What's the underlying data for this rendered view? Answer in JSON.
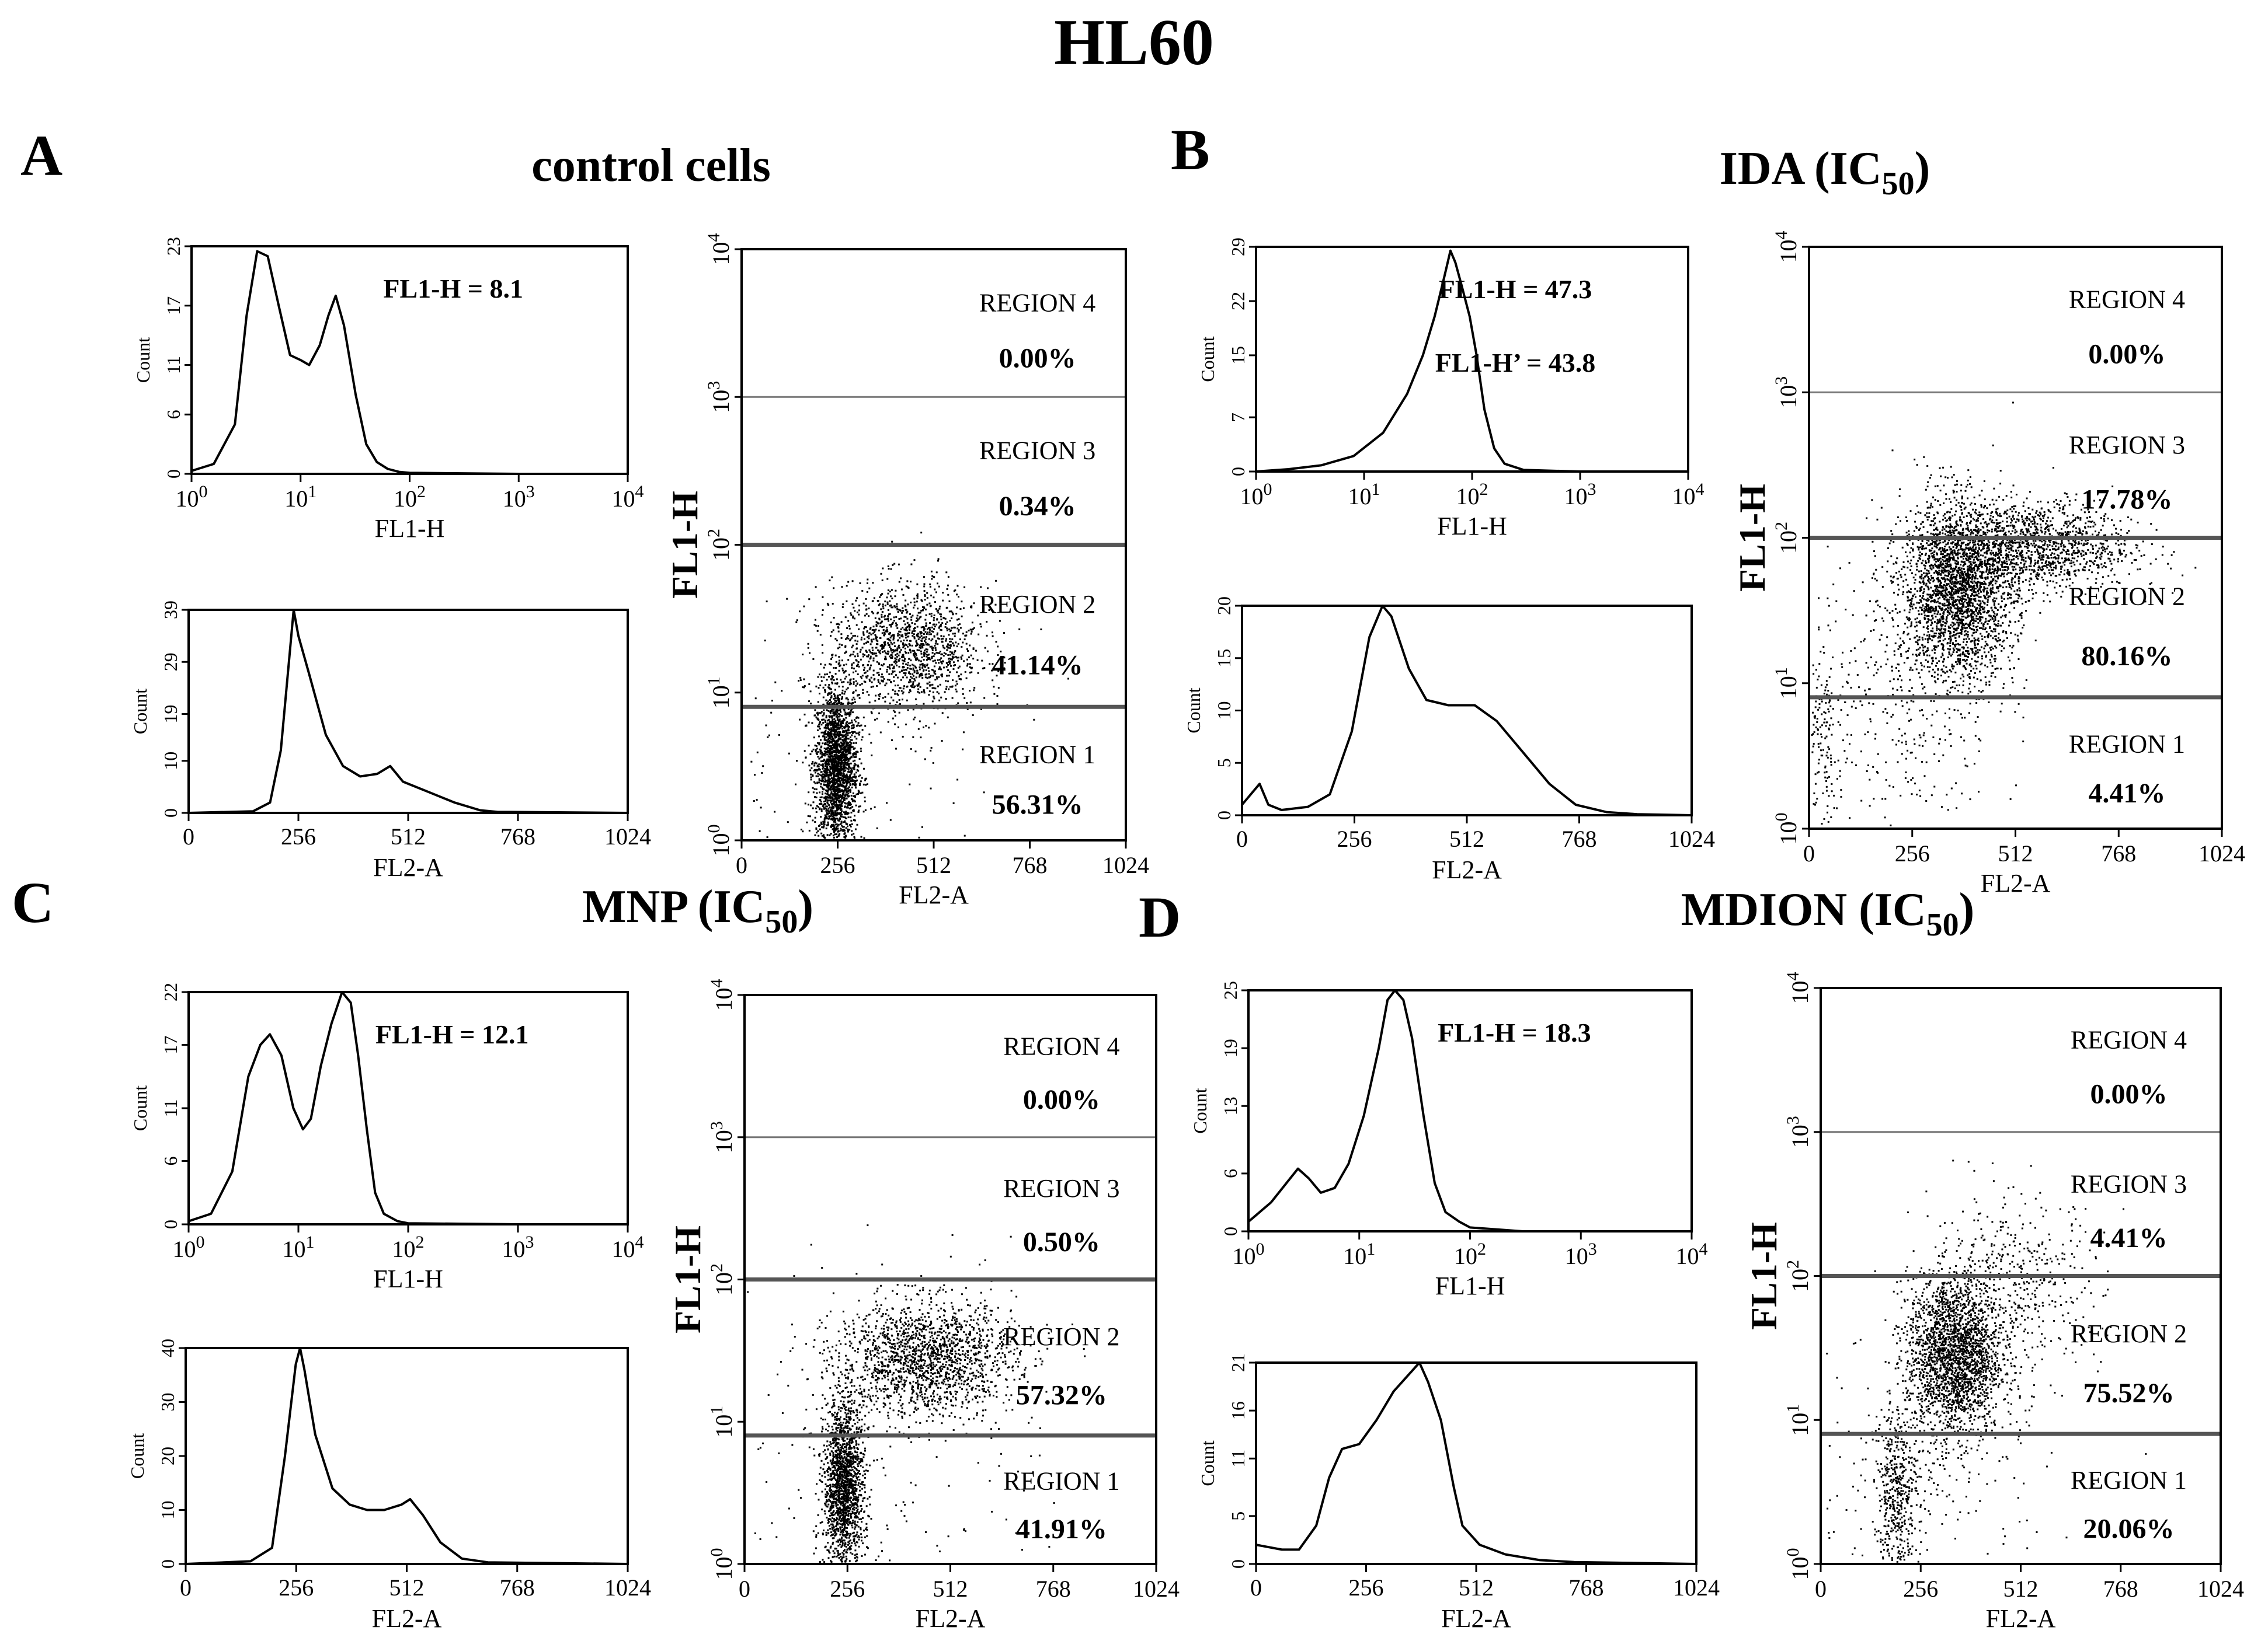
{
  "figure_title": "HL60",
  "panels": [
    {
      "letter": "A",
      "title": "control cells",
      "title_sub": ""
    },
    {
      "letter": "B",
      "title": "IDA  (IC",
      "title_sub": "50",
      "title_end": ")"
    },
    {
      "letter": "C",
      "title": "MNP (IC",
      "title_sub": "50",
      "title_end": ")"
    },
    {
      "letter": "D",
      "title": "MDION (IC",
      "title_sub": "50",
      "title_end": ")"
    }
  ],
  "chart_data": [
    {
      "type": "line",
      "panel": "A",
      "xlabel": "FL1-H",
      "ylabel": "Count",
      "xscale": "log",
      "xlim": [
        1,
        10000
      ],
      "ylim": [
        0,
        23
      ],
      "yticks": [
        0,
        6,
        11,
        17,
        23
      ],
      "xticks": [
        "10",
        "10",
        "10",
        "10",
        "10"
      ],
      "xtick_exp": [
        "0",
        "1",
        "2",
        "3",
        "4"
      ],
      "annotations": [
        "FL1-H = 8.1"
      ],
      "x": [
        1,
        1.6,
        2.5,
        3.2,
        4,
        5,
        6.3,
        8,
        10,
        12,
        15,
        18,
        21,
        25,
        32,
        40,
        50,
        63,
        80,
        100,
        1000,
        10000
      ],
      "y": [
        0.3,
        1,
        5,
        16,
        22.5,
        22,
        17,
        12,
        11.5,
        11,
        13,
        16,
        18,
        15,
        8,
        3,
        1.2,
        0.5,
        0.2,
        0.1,
        0,
        0
      ]
    },
    {
      "type": "line",
      "panel": "A",
      "xlabel": "FL2-A",
      "ylabel": "Count",
      "xlim": [
        0,
        1024
      ],
      "ylim": [
        0,
        39
      ],
      "yticks": [
        0,
        10,
        19,
        29,
        39
      ],
      "xticks": [
        "0",
        "256",
        "512",
        "768",
        "1024"
      ],
      "x": [
        0,
        150,
        190,
        215,
        235,
        245,
        256,
        280,
        320,
        360,
        400,
        440,
        470,
        500,
        560,
        620,
        680,
        720,
        1024
      ],
      "y": [
        0,
        0.3,
        2,
        12,
        30,
        39,
        34,
        27,
        15,
        9,
        7,
        7.5,
        9,
        6,
        4,
        2,
        0.5,
        0.2,
        0
      ]
    },
    {
      "type": "scatter",
      "panel": "A",
      "xlabel": "FL2-A",
      "ylabel": "FL1-H",
      "yscale": "log",
      "xlim": [
        0,
        1024
      ],
      "ylim": [
        1,
        10000
      ],
      "xticks": [
        "0",
        "256",
        "512",
        "768",
        "1024"
      ],
      "yticks": [
        "10",
        "10",
        "10",
        "10",
        "10"
      ],
      "ytick_exp": [
        "0",
        "1",
        "2",
        "3",
        "4"
      ],
      "gates": [
        8,
        100,
        1000
      ],
      "regions": [
        {
          "label": "REGION 4",
          "value": "0.00%"
        },
        {
          "label": "REGION 3",
          "value": "0.34%"
        },
        {
          "label": "REGION 2",
          "value": "41.14%"
        },
        {
          "label": "REGION 1",
          "value": "56.31%"
        }
      ],
      "clusters": [
        {
          "cx": 250,
          "cy": 0.5,
          "sx": 28,
          "sy": 0.28,
          "n": 2200
        },
        {
          "cx": 440,
          "cy": 1.3,
          "sx": 100,
          "sy": 0.22,
          "n": 1400
        },
        {
          "cx": 300,
          "cy": 0.6,
          "sx": 200,
          "sy": 0.6,
          "n": 180
        }
      ]
    },
    {
      "type": "line",
      "panel": "B",
      "xlabel": "FL1-H",
      "ylabel": "Count",
      "xscale": "log",
      "xlim": [
        1,
        10000
      ],
      "ylim": [
        0,
        29
      ],
      "yticks": [
        0,
        7,
        15,
        22,
        29
      ],
      "xticks": [
        "10",
        "10",
        "10",
        "10",
        "10"
      ],
      "xtick_exp": [
        "0",
        "1",
        "2",
        "3",
        "4"
      ],
      "annotations": [
        "FL1-H = 47.3",
        "FL1-H’ = 43.8"
      ],
      "x": [
        1,
        2,
        4,
        8,
        15,
        25,
        35,
        45,
        55,
        63,
        70,
        80,
        95,
        110,
        130,
        160,
        200,
        300,
        1000,
        10000
      ],
      "y": [
        0,
        0.3,
        0.8,
        2,
        5,
        10,
        15,
        20,
        25,
        28.5,
        27,
        24,
        20,
        15,
        8,
        3,
        1,
        0.2,
        0,
        0
      ]
    },
    {
      "type": "line",
      "panel": "B",
      "xlabel": "FL2-A",
      "ylabel": "Count",
      "xlim": [
        0,
        1024
      ],
      "ylim": [
        0,
        20
      ],
      "yticks": [
        0,
        5,
        10,
        15,
        20
      ],
      "xticks": [
        "0",
        "256",
        "512",
        "768",
        "1024"
      ],
      "x": [
        0,
        20,
        40,
        60,
        90,
        150,
        200,
        250,
        290,
        320,
        340,
        380,
        420,
        470,
        530,
        580,
        640,
        700,
        760,
        830,
        900,
        1024
      ],
      "y": [
        1,
        2,
        3,
        1,
        0.5,
        0.8,
        2,
        8,
        17,
        20,
        19,
        14,
        11,
        10.5,
        10.5,
        9,
        6,
        3,
        1,
        0.3,
        0.1,
        0
      ]
    },
    {
      "type": "scatter",
      "panel": "B",
      "xlabel": "FL2-A",
      "ylabel": "FL1-H",
      "yscale": "log",
      "xlim": [
        0,
        1024
      ],
      "ylim": [
        1,
        10000
      ],
      "xticks": [
        "0",
        "256",
        "512",
        "768",
        "1024"
      ],
      "yticks": [
        "10",
        "10",
        "10",
        "10",
        "10"
      ],
      "ytick_exp": [
        "0",
        "1",
        "2",
        "3",
        "4"
      ],
      "gates": [
        8,
        100,
        1000
      ],
      "regions": [
        {
          "label": "REGION 4",
          "value": "0.00%"
        },
        {
          "label": "REGION 3",
          "value": "17.78%"
        },
        {
          "label": "REGION 2",
          "value": "80.16%"
        },
        {
          "label": "REGION 1",
          "value": "4.41%"
        }
      ],
      "clusters": [
        {
          "cx": 370,
          "cy": 1.65,
          "sx": 70,
          "sy": 0.3,
          "n": 2600
        },
        {
          "cx": 560,
          "cy": 1.95,
          "sx": 120,
          "sy": 0.15,
          "n": 1300
        },
        {
          "cx": 220,
          "cy": 0.9,
          "sx": 120,
          "sy": 0.5,
          "n": 400
        },
        {
          "cx": 30,
          "cy": 0.6,
          "sx": 20,
          "sy": 0.3,
          "n": 120
        }
      ]
    },
    {
      "type": "line",
      "panel": "C",
      "xlabel": "FL1-H",
      "ylabel": "Count",
      "xscale": "log",
      "xlim": [
        1,
        10000
      ],
      "ylim": [
        0,
        22
      ],
      "yticks": [
        0,
        6,
        11,
        17,
        22
      ],
      "xticks": [
        "10",
        "10",
        "10",
        "10",
        "10"
      ],
      "xtick_exp": [
        "0",
        "1",
        "2",
        "3",
        "4"
      ],
      "annotations": [
        "FL1-H = 12.1"
      ],
      "x": [
        1,
        1.6,
        2.5,
        3.5,
        4.5,
        5.5,
        7,
        9,
        11,
        13,
        16,
        20,
        25,
        30,
        35,
        42,
        50,
        60,
        80,
        100,
        1000,
        10000
      ],
      "y": [
        0.3,
        1,
        5,
        14,
        17,
        18,
        16,
        11,
        9,
        10,
        15,
        19,
        22,
        21,
        16,
        9,
        3,
        1,
        0.3,
        0.1,
        0,
        0
      ]
    },
    {
      "type": "line",
      "panel": "C",
      "xlabel": "FL2-A",
      "ylabel": "Count",
      "xlim": [
        0,
        1024
      ],
      "ylim": [
        0,
        40
      ],
      "yticks": [
        0,
        10,
        20,
        30,
        40
      ],
      "xticks": [
        "0",
        "256",
        "512",
        "768",
        "1024"
      ],
      "x": [
        0,
        150,
        200,
        230,
        255,
        265,
        275,
        300,
        340,
        380,
        420,
        460,
        500,
        520,
        550,
        590,
        640,
        700,
        1024
      ],
      "y": [
        0,
        0.5,
        3,
        20,
        37,
        40,
        36,
        24,
        14,
        11,
        10,
        10,
        11,
        12,
        9,
        4,
        1,
        0.3,
        0
      ]
    },
    {
      "type": "scatter",
      "panel": "C",
      "xlabel": "FL2-A",
      "ylabel": "FL1-H",
      "yscale": "log",
      "xlim": [
        0,
        1024
      ],
      "ylim": [
        1,
        10000
      ],
      "xticks": [
        "0",
        "256",
        "512",
        "768",
        "1024"
      ],
      "yticks": [
        "10",
        "10",
        "10",
        "10",
        "10"
      ],
      "ytick_exp": [
        "0",
        "1",
        "2",
        "3",
        "4"
      ],
      "gates": [
        8,
        100,
        1000
      ],
      "regions": [
        {
          "label": "REGION 4",
          "value": "0.00%"
        },
        {
          "label": "REGION 3",
          "value": "0.50%"
        },
        {
          "label": "REGION 2",
          "value": "57.32%"
        },
        {
          "label": "REGION 1",
          "value": "41.91%"
        }
      ],
      "clusters": [
        {
          "cx": 245,
          "cy": 0.55,
          "sx": 25,
          "sy": 0.3,
          "n": 1700
        },
        {
          "cx": 450,
          "cy": 1.45,
          "sx": 110,
          "sy": 0.2,
          "n": 1700
        },
        {
          "cx": 330,
          "cy": 0.9,
          "sx": 220,
          "sy": 0.6,
          "n": 200
        }
      ]
    },
    {
      "type": "line",
      "panel": "D",
      "xlabel": "FL1-H",
      "ylabel": "Count",
      "xscale": "log",
      "xlim": [
        1,
        10000
      ],
      "ylim": [
        0,
        25
      ],
      "yticks": [
        0,
        6,
        13,
        19,
        25
      ],
      "xticks": [
        "10",
        "10",
        "10",
        "10",
        "10"
      ],
      "xtick_exp": [
        "0",
        "1",
        "2",
        "3",
        "4"
      ],
      "annotations": [
        "FL1-H = 18.3"
      ],
      "x": [
        1,
        1.6,
        2.2,
        2.8,
        3.5,
        4.5,
        6,
        8,
        11,
        15,
        18,
        21,
        25,
        30,
        38,
        48,
        60,
        80,
        100,
        300,
        10000
      ],
      "y": [
        1,
        3,
        5,
        6.5,
        5.5,
        4,
        4.5,
        7,
        12,
        19,
        24,
        25,
        24,
        20,
        12,
        5,
        2,
        1,
        0.4,
        0,
        0
      ]
    },
    {
      "type": "line",
      "panel": "D",
      "xlabel": "FL2-A",
      "ylabel": "Count",
      "xlim": [
        0,
        1024
      ],
      "ylim": [
        0,
        21
      ],
      "yticks": [
        0,
        5,
        11,
        16,
        21
      ],
      "xticks": [
        "0",
        "256",
        "512",
        "768",
        "1024"
      ],
      "x": [
        0,
        60,
        100,
        140,
        170,
        200,
        240,
        280,
        320,
        360,
        380,
        400,
        430,
        460,
        480,
        520,
        580,
        660,
        740,
        1024
      ],
      "y": [
        2,
        1.5,
        1.5,
        4,
        9,
        12,
        12.5,
        15,
        18,
        20,
        21,
        19,
        15,
        8,
        4,
        2,
        1,
        0.4,
        0.2,
        0
      ]
    },
    {
      "type": "scatter",
      "panel": "D",
      "xlabel": "FL2-A",
      "ylabel": "FL1-H",
      "yscale": "log",
      "xlim": [
        0,
        1024
      ],
      "ylim": [
        1,
        10000
      ],
      "xticks": [
        "0",
        "256",
        "512",
        "768",
        "1024"
      ],
      "yticks": [
        "10",
        "10",
        "10",
        "10",
        "10"
      ],
      "ytick_exp": [
        "0",
        "1",
        "2",
        "3",
        "4"
      ],
      "gates": [
        8,
        100,
        1000
      ],
      "regions": [
        {
          "label": "REGION 4",
          "value": "0.00%"
        },
        {
          "label": "REGION 3",
          "value": "4.41%"
        },
        {
          "label": "REGION 2",
          "value": "75.52%"
        },
        {
          "label": "REGION 1",
          "value": "20.06%"
        }
      ],
      "clusters": [
        {
          "cx": 340,
          "cy": 1.45,
          "sx": 60,
          "sy": 0.28,
          "n": 2300
        },
        {
          "cx": 195,
          "cy": 0.5,
          "sx": 25,
          "sy": 0.3,
          "n": 450
        },
        {
          "cx": 500,
          "cy": 1.95,
          "sx": 110,
          "sy": 0.3,
          "n": 450
        },
        {
          "cx": 260,
          "cy": 0.6,
          "sx": 160,
          "sy": 0.5,
          "n": 250
        }
      ]
    }
  ]
}
